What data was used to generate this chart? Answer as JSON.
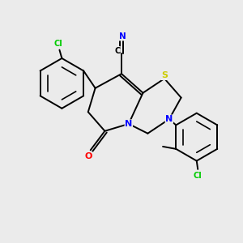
{
  "background_color": "#EBEBEB",
  "bond_color": "#000000",
  "N_color": "#0000FF",
  "O_color": "#FF0000",
  "S_color": "#CCCC00",
  "Cl_color": "#00CC00",
  "figsize": [
    3.0,
    3.0
  ],
  "dpi": 100,
  "xlim": [
    0,
    10
  ],
  "ylim": [
    0,
    10
  ]
}
